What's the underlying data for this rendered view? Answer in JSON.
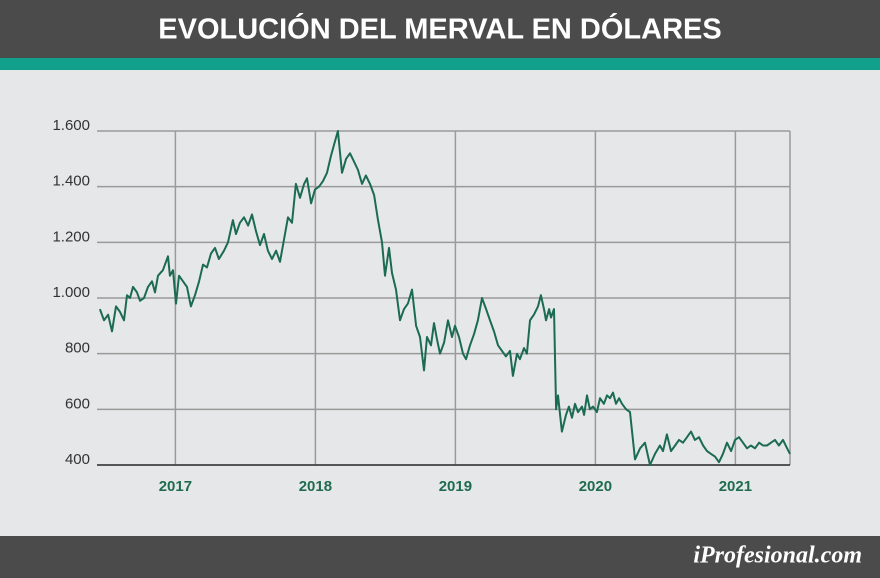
{
  "chart_data": {
    "type": "line",
    "title": "EVOLUCIÓN DEL MERVAL EN DÓLARES",
    "color": "#1b6b52",
    "grid": true,
    "xlim": [
      2016.44,
      2021.39
    ],
    "xticks": [
      2017,
      2018,
      2019,
      2020,
      2021
    ],
    "ylim": [
      400,
      1600
    ],
    "yticks": [
      400,
      600,
      800,
      {
        "value": 1000,
        "label": "1.000"
      },
      {
        "value": 1200,
        "label": "1.200"
      },
      {
        "value": 1400,
        "label": "1.400"
      },
      {
        "value": 1600,
        "label": "1.600"
      }
    ],
    "x": [
      2016.461,
      2016.49,
      2016.519,
      2016.547,
      2016.576,
      2016.604,
      2016.633,
      2016.654,
      2016.676,
      2016.697,
      2016.726,
      2016.747,
      2016.776,
      2016.804,
      2016.833,
      2016.854,
      2016.876,
      2016.911,
      2016.947,
      2016.961,
      2016.983,
      2017.004,
      2017.026,
      2017.054,
      2017.083,
      2017.111,
      2017.14,
      2017.169,
      2017.197,
      2017.226,
      2017.254,
      2017.283,
      2017.311,
      2017.347,
      2017.376,
      2017.411,
      2017.433,
      2017.461,
      2017.49,
      2017.519,
      2017.547,
      2017.576,
      2017.604,
      2017.633,
      2017.661,
      2017.69,
      2017.719,
      2017.747,
      2017.776,
      2017.804,
      2017.833,
      2017.861,
      2017.89,
      2017.919,
      2017.94,
      2017.969,
      2017.997,
      2018.026,
      2018.054,
      2018.083,
      2018.111,
      2018.133,
      2018.161,
      2018.19,
      2018.219,
      2018.247,
      2018.276,
      2018.304,
      2018.333,
      2018.361,
      2018.39,
      2018.419,
      2018.447,
      2018.476,
      2018.497,
      2018.526,
      2018.547,
      2018.576,
      2018.604,
      2018.633,
      2018.661,
      2018.69,
      2018.719,
      2018.747,
      2018.776,
      2018.797,
      2018.826,
      2018.847,
      2018.869,
      2018.89,
      2018.919,
      2018.947,
      2018.976,
      2018.997,
      2019.026,
      2019.054,
      2019.076,
      2019.104,
      2019.133,
      2019.161,
      2019.19,
      2019.219,
      2019.247,
      2019.276,
      2019.304,
      2019.333,
      2019.361,
      2019.39,
      2019.411,
      2019.44,
      2019.461,
      2019.49,
      2019.511,
      2019.533,
      2019.561,
      2019.59,
      2019.611,
      2019.633,
      2019.647,
      2019.669,
      2019.683,
      2019.704,
      2019.719,
      2019.733,
      2019.761,
      2019.79,
      2019.811,
      2019.833,
      2019.854,
      2019.876,
      2019.904,
      2019.919,
      2019.94,
      2019.961,
      2019.983,
      2020.011,
      2020.033,
      2020.061,
      2020.083,
      2020.104,
      2020.126,
      2020.147,
      2020.169,
      2020.19,
      2020.219,
      2020.247,
      2020.283,
      2020.319,
      2020.354,
      2020.39,
      2020.426,
      2020.461,
      2020.483,
      2020.511,
      2020.54,
      2020.569,
      2020.597,
      2020.626,
      2020.654,
      2020.683,
      2020.711,
      2020.74,
      2020.769,
      2020.797,
      2020.826,
      2020.854,
      2020.883,
      2020.911,
      2020.94,
      2020.969,
      2020.997,
      2021.026,
      2021.054,
      2021.083,
      2021.111,
      2021.14,
      2021.169,
      2021.197,
      2021.226,
      2021.254,
      2021.283,
      2021.311,
      2021.34,
      2021.369,
      2021.39
    ],
    "values": [
      960,
      920,
      940,
      880,
      970,
      950,
      920,
      1010,
      1000,
      1040,
      1020,
      990,
      1000,
      1040,
      1060,
      1020,
      1080,
      1100,
      1150,
      1080,
      1100,
      980,
      1080,
      1060,
      1040,
      970,
      1010,
      1060,
      1120,
      1110,
      1160,
      1180,
      1140,
      1170,
      1200,
      1280,
      1230,
      1270,
      1290,
      1260,
      1300,
      1240,
      1190,
      1230,
      1170,
      1140,
      1170,
      1130,
      1210,
      1290,
      1270,
      1410,
      1360,
      1410,
      1430,
      1340,
      1390,
      1400,
      1420,
      1450,
      1510,
      1550,
      1600,
      1450,
      1500,
      1520,
      1490,
      1460,
      1410,
      1440,
      1410,
      1370,
      1280,
      1200,
      1080,
      1180,
      1090,
      1030,
      920,
      960,
      980,
      1030,
      900,
      860,
      740,
      860,
      830,
      910,
      850,
      800,
      840,
      920,
      860,
      900,
      860,
      800,
      780,
      830,
      870,
      920,
      1000,
      960,
      920,
      880,
      830,
      810,
      790,
      810,
      720,
      800,
      780,
      820,
      800,
      920,
      940,
      970,
      1010,
      960,
      920,
      960,
      930,
      960,
      600,
      650,
      520,
      580,
      610,
      570,
      620,
      590,
      610,
      580,
      650,
      600,
      610,
      590,
      640,
      620,
      650,
      640,
      660,
      620,
      640,
      620,
      600,
      590,
      420,
      460,
      480,
      400,
      440,
      470,
      450,
      510,
      450,
      470,
      490,
      480,
      500,
      520,
      490,
      500,
      470,
      450,
      440,
      430,
      410,
      440,
      480,
      450,
      490,
      500,
      480,
      460,
      470,
      460,
      480,
      470,
      470,
      480,
      490,
      470,
      490,
      460,
      440
    ]
  },
  "footer": {
    "brand": "iProfesional.com"
  }
}
